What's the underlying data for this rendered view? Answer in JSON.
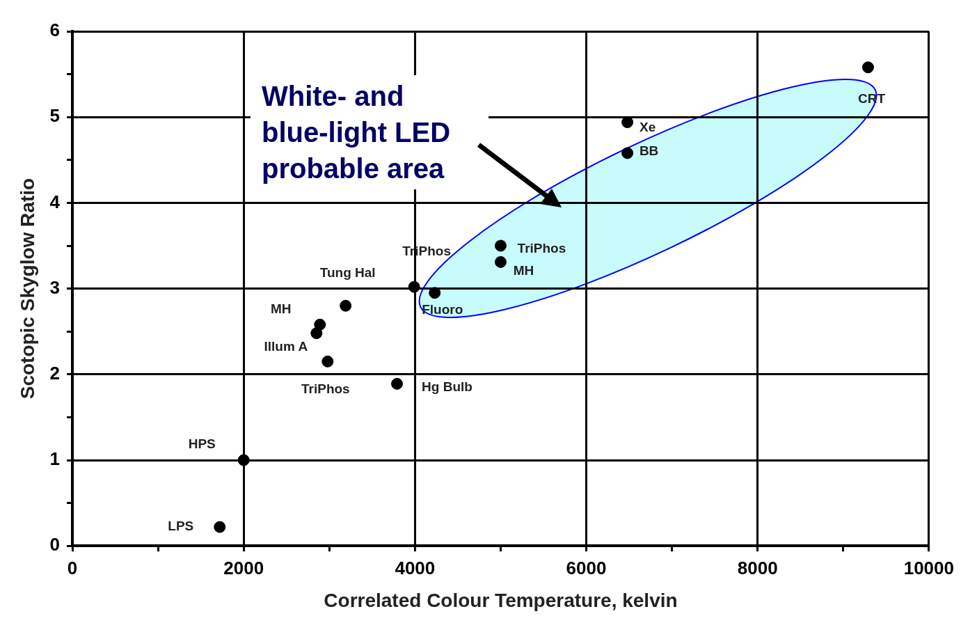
{
  "chart_data": {
    "type": "scatter",
    "xlabel": "Correlated Colour Temperature, kelvin",
    "ylabel": "Scotopic Skyglow Ratio",
    "x": [
      1720,
      2000,
      2850,
      2890,
      3190,
      2980,
      3790,
      3990,
      4230,
      5000,
      5000,
      6480,
      6480,
      9290
    ],
    "series": [
      {
        "color": "#000000",
        "values": [
          0.22,
          1.0,
          2.48,
          2.58,
          2.8,
          2.15,
          1.89,
          3.02,
          2.95,
          3.5,
          3.31,
          4.94,
          4.58,
          5.58
        ]
      }
    ],
    "xlim": [
      0,
      10000
    ],
    "ylim": [
      0,
      6
    ],
    "xticks": [
      0,
      {
        "value": 1000,
        "label": null
      },
      2000,
      {
        "value": 3000,
        "label": null
      },
      4000,
      {
        "value": 5000,
        "label": null
      },
      6000,
      {
        "value": 7000,
        "label": null
      },
      8000,
      {
        "value": 9000,
        "label": null
      },
      10000
    ],
    "yticks": [
      0,
      {
        "value": 0.5,
        "label": null
      },
      1,
      {
        "value": 1.5,
        "label": null
      },
      2,
      {
        "value": 2.5,
        "label": null
      },
      3,
      {
        "value": 3.5,
        "label": null
      },
      4,
      {
        "value": 4.5,
        "label": null
      },
      5,
      {
        "value": 5.5,
        "label": null
      },
      6
    ],
    "grid": true,
    "legend": false,
    "marker": "circle",
    "annotations": [
      "White- and blue-light LED probable area",
      {
        "text": "LPS",
        "x": 1720,
        "y": 0.22
      },
      {
        "text": "HPS",
        "x": 2000,
        "y": 1.0
      },
      {
        "text": "Illum A",
        "x": 2850,
        "y": 2.48
      },
      {
        "text": "MH",
        "x": 2890,
        "y": 2.58
      },
      {
        "text": "Tung Hal",
        "x": 3190,
        "y": 2.8
      },
      {
        "text": "TriPhos",
        "x": 2980,
        "y": 2.15
      },
      {
        "text": "Hg Bulb",
        "x": 3790,
        "y": 1.89
      },
      {
        "text": "TriPhos",
        "x": 3990,
        "y": 3.02
      },
      {
        "text": "Fluoro",
        "x": 4230,
        "y": 2.95
      },
      {
        "text": "TriPhos",
        "x": 5000,
        "y": 3.5
      },
      {
        "text": "MH",
        "x": 5000,
        "y": 3.31
      },
      {
        "text": "Xe",
        "x": 6480,
        "y": 4.94
      },
      {
        "text": "BB",
        "x": 6480,
        "y": 4.58
      },
      {
        "text": "CRT",
        "x": 9290,
        "y": 5.58
      }
    ]
  }
}
